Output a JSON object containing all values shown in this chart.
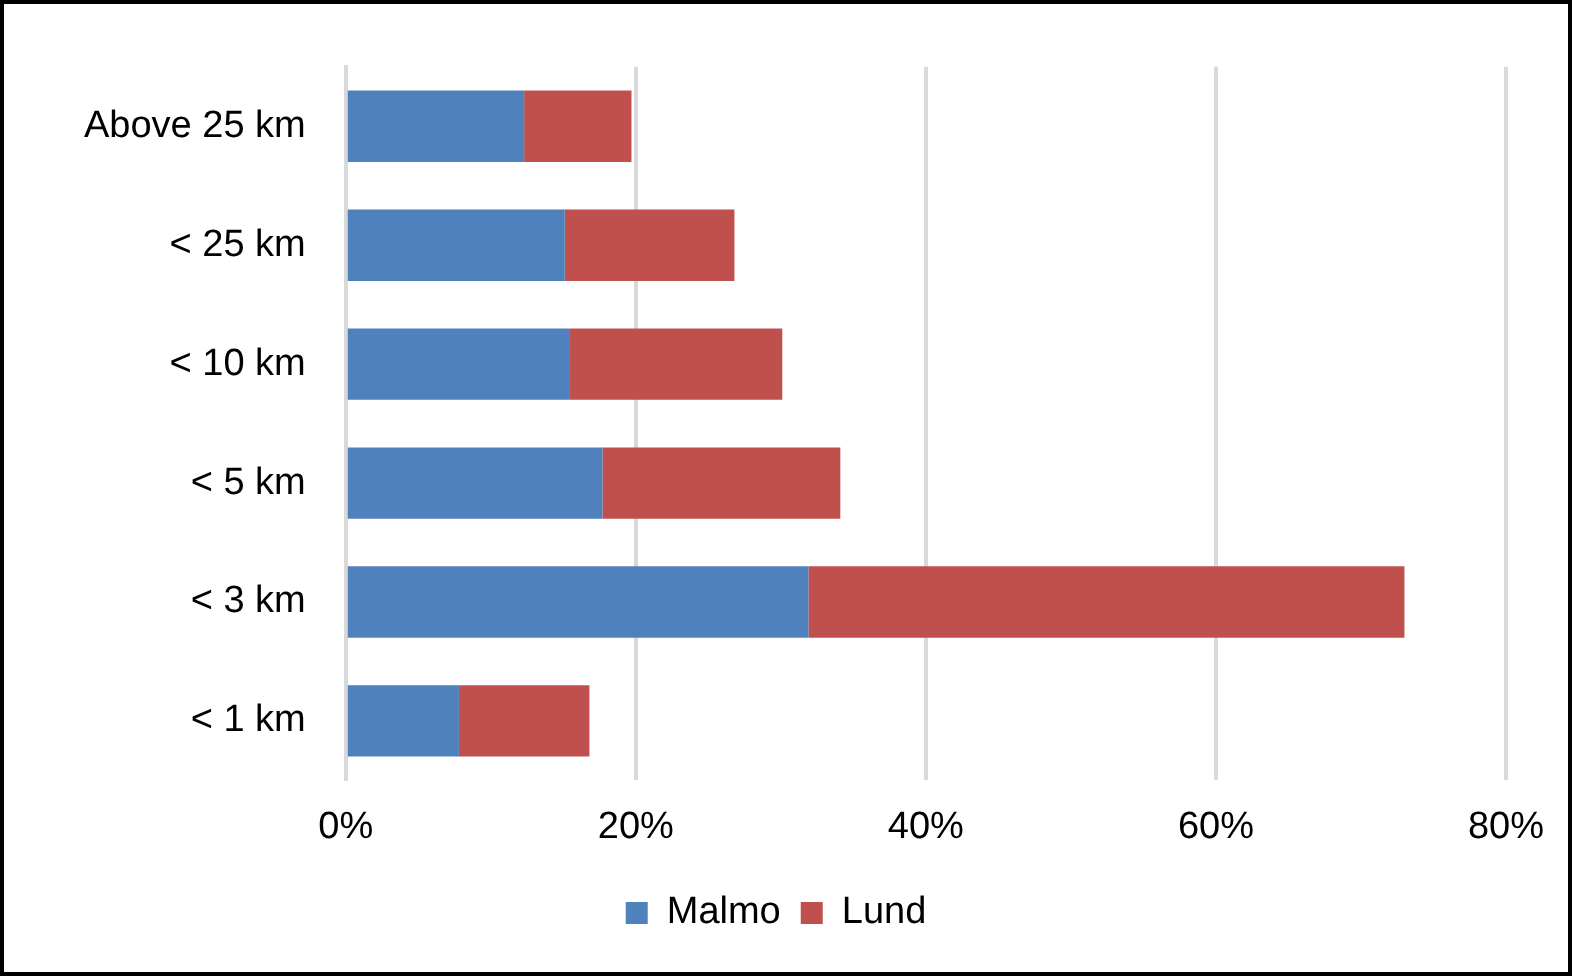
{
  "chart_data": {
    "type": "bar",
    "orientation": "horizontal",
    "stacked": true,
    "categories": [
      "Above 25 km",
      "< 25 km",
      "< 10 km",
      "< 5 km",
      "< 3 km",
      "< 1 km"
    ],
    "series": [
      {
        "name": "Malmo",
        "color": "#4f81bd",
        "values": [
          12.3,
          15.1,
          15.4,
          17.7,
          31.9,
          7.8
        ]
      },
      {
        "name": "Lund",
        "color": "#c0504d",
        "values": [
          7.4,
          11.7,
          14.7,
          16.4,
          41.1,
          9.0
        ]
      }
    ],
    "xlim": [
      0,
      80
    ],
    "xticks": [
      {
        "value": 0,
        "label": "0%"
      },
      {
        "value": 20,
        "label": "20%"
      },
      {
        "value": 40,
        "label": "40%"
      },
      {
        "value": 60,
        "label": "60%"
      },
      {
        "value": 80,
        "label": "80%"
      }
    ],
    "grid": "x",
    "legend": "bottom"
  }
}
